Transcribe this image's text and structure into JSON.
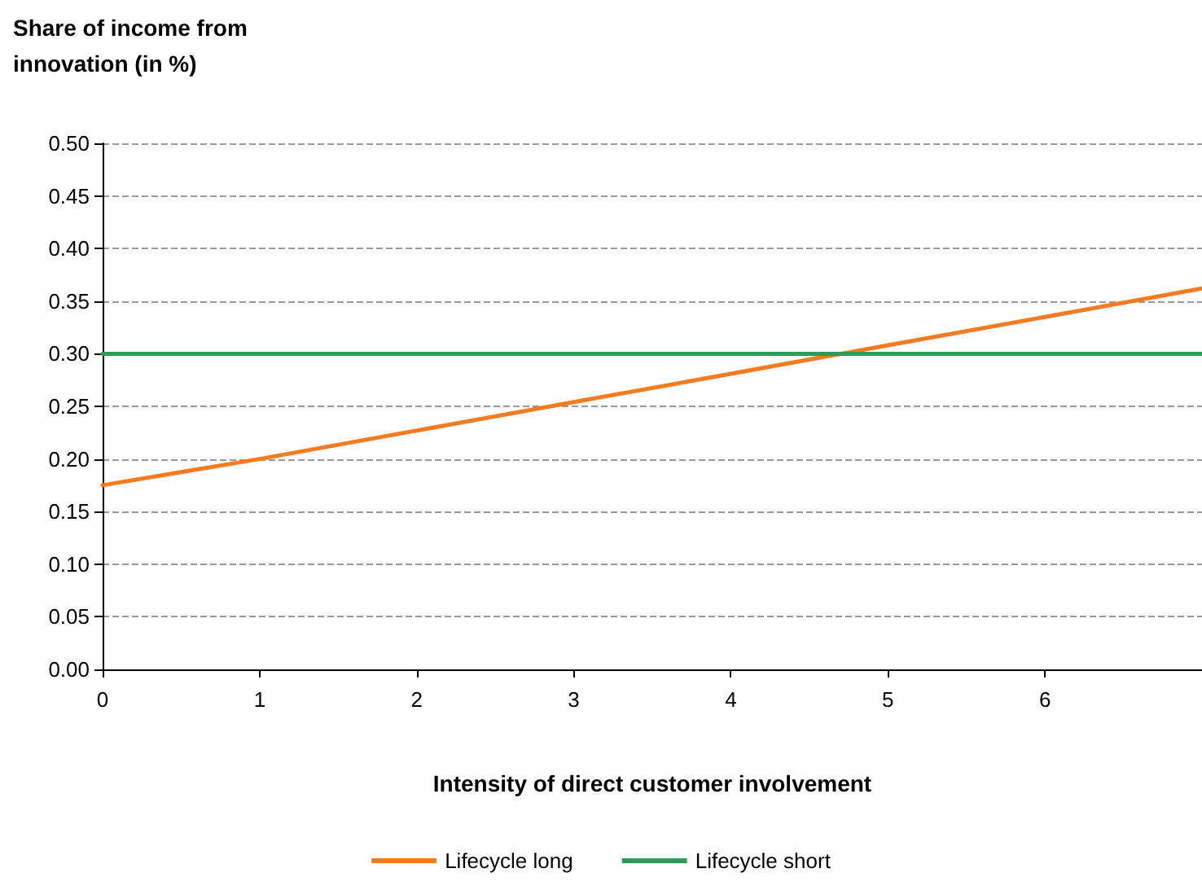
{
  "chart_data": {
    "type": "line",
    "ylabel": "Share of income from\ninnovation (in %)",
    "xlabel": "Intensity of direct customer involvement",
    "x": [
      0,
      1,
      2,
      3,
      4,
      5,
      6,
      7
    ],
    "series": [
      {
        "name": "Lifecycle long",
        "color": "#f47b20",
        "values": [
          0.175,
          0.2,
          0.227,
          0.254,
          0.281,
          0.308,
          0.335,
          0.362
        ]
      },
      {
        "name": "Lifecycle short",
        "color": "#2e9a5a",
        "values": [
          0.3,
          0.3,
          0.3,
          0.3,
          0.3,
          0.3,
          0.3,
          0.3
        ]
      }
    ],
    "xlim": [
      0,
      7
    ],
    "xticks": [
      0,
      1,
      2,
      3,
      4,
      5,
      6
    ],
    "ylim": [
      0,
      0.5
    ],
    "yticks": [
      {
        "value": 0,
        "label": "0.00"
      },
      {
        "value": 0.05,
        "label": "0.05"
      },
      {
        "value": 0.1,
        "label": "0.10"
      },
      {
        "value": 0.15,
        "label": "0.15"
      },
      {
        "value": 0.2,
        "label": "0.20"
      },
      {
        "value": 0.25,
        "label": "0.25"
      },
      {
        "value": 0.3,
        "label": "0.30"
      },
      {
        "value": 0.35,
        "label": "0.35"
      },
      {
        "value": 0.4,
        "label": "0.40"
      },
      {
        "value": 0.45,
        "label": "0.45"
      },
      {
        "value": 0.5,
        "label": "0.50"
      }
    ],
    "grid": "y",
    "legend": "bottom",
    "marker": "none",
    "line_style": "solid"
  }
}
